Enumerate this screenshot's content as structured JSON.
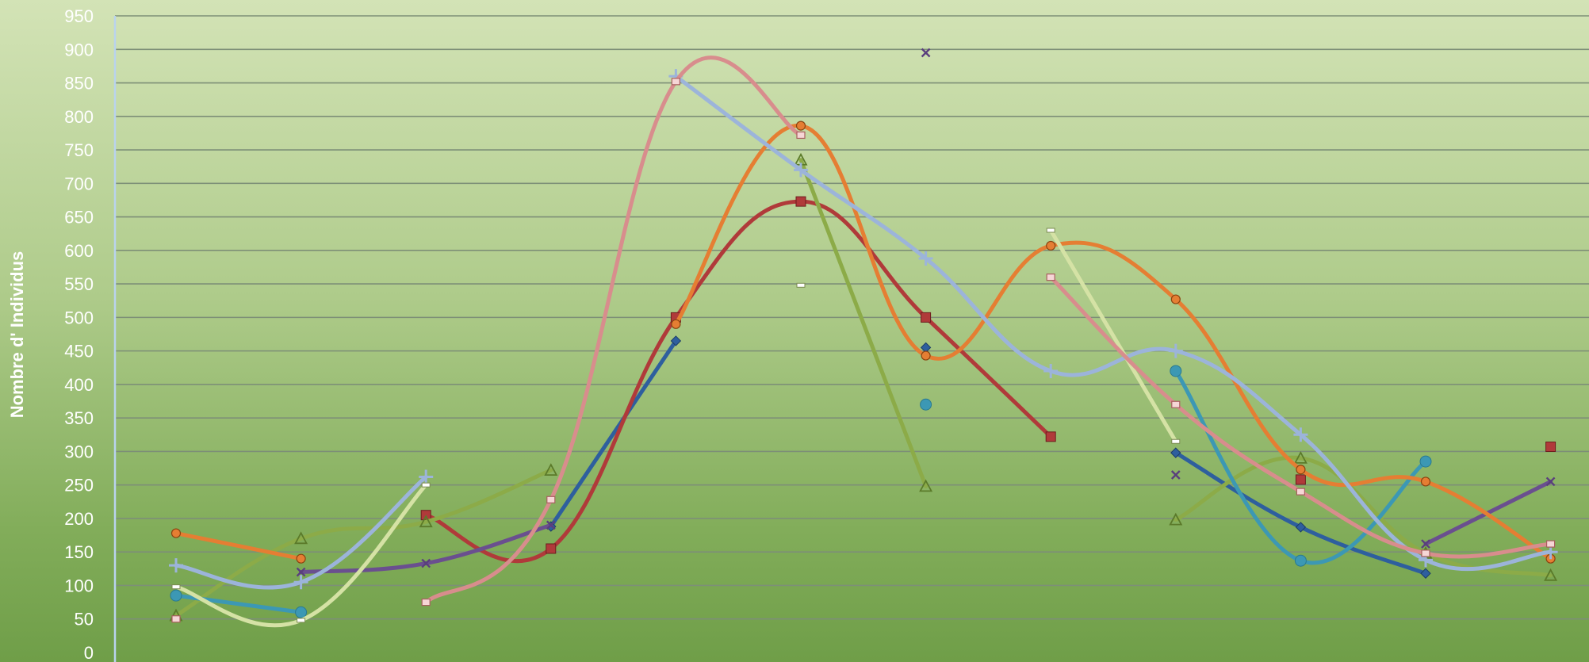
{
  "chart_data": {
    "type": "line",
    "title": "",
    "xlabel": "",
    "ylabel": "Nombre d' Individus",
    "ylim": [
      0,
      950
    ],
    "y_ticks": [
      0,
      50,
      100,
      150,
      200,
      250,
      300,
      350,
      400,
      450,
      500,
      550,
      600,
      650,
      700,
      750,
      800,
      850,
      900,
      950
    ],
    "grid": true,
    "smooth": true,
    "x_count": 12,
    "series": [
      {
        "color": "#2e5f9e",
        "marker": "diamond",
        "values": [
          null,
          null,
          null,
          188,
          465,
          null,
          455,
          null,
          298,
          187,
          118,
          null
        ]
      },
      {
        "color": "#b03a3a",
        "marker": "square",
        "values": [
          null,
          null,
          205,
          155,
          500,
          673,
          500,
          322,
          null,
          258,
          null,
          307
        ]
      },
      {
        "color": "#8cab48",
        "marker": "triangle",
        "values": [
          55,
          170,
          195,
          272,
          null,
          735,
          248,
          null,
          198,
          290,
          148,
          115
        ]
      },
      {
        "color": "#6a4f8f",
        "marker": "x",
        "values": [
          null,
          120,
          133,
          190,
          null,
          null,
          895,
          null,
          265,
          null,
          162,
          255
        ]
      },
      {
        "color": "#3c98b4",
        "marker": "circle",
        "values": [
          85,
          60,
          null,
          null,
          null,
          null,
          370,
          null,
          420,
          137,
          285,
          null
        ]
      },
      {
        "color": "#e57e33",
        "marker": "orange-circle",
        "values": [
          178,
          140,
          null,
          null,
          490,
          786,
          443,
          607,
          527,
          273,
          255,
          140
        ]
      },
      {
        "color": "#9cb4da",
        "marker": "plus",
        "values": [
          130,
          105,
          262,
          null,
          860,
          720,
          588,
          420,
          450,
          325,
          138,
          150
        ]
      },
      {
        "color": "#d5e2a5",
        "marker": "dash",
        "values": [
          98,
          48,
          250,
          null,
          null,
          548,
          null,
          630,
          315,
          null,
          null,
          null
        ]
      },
      {
        "color": "#d88d8d",
        "marker": "pink-square",
        "values": [
          50,
          null,
          75,
          228,
          852,
          772,
          null,
          560,
          370,
          240,
          148,
          162
        ]
      }
    ]
  }
}
